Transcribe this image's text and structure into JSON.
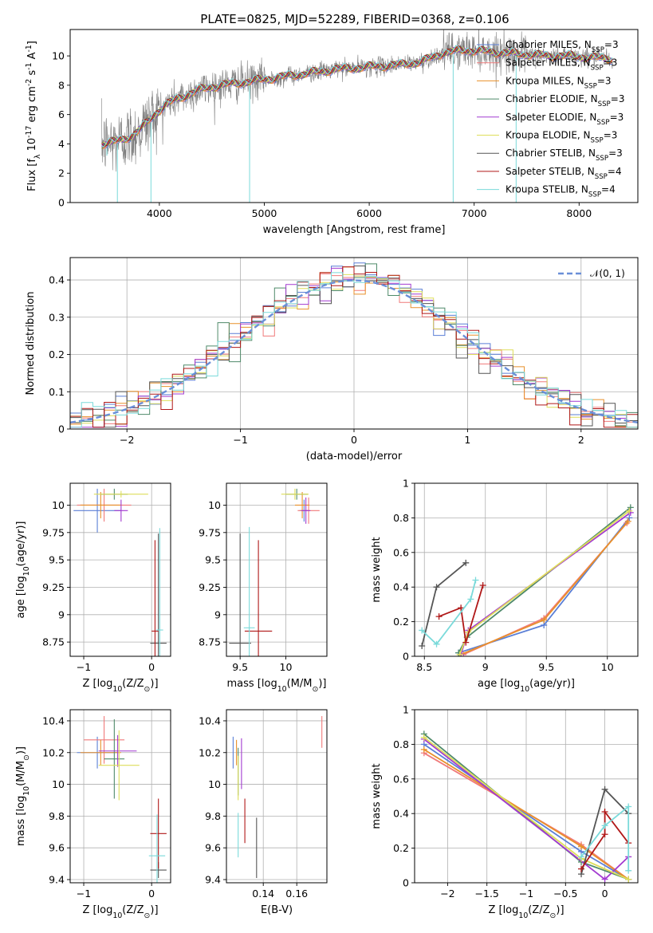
{
  "figure": {
    "title": "PLATE=0825, MJD=52289, FIBERID=0368, z=0.106"
  },
  "colors": {
    "Chabrier MILES": "#5b7fd6",
    "Salpeter MILES": "#f07a7a",
    "Kroupa MILES": "#e8902a",
    "Chabrier ELODIE": "#4f8a6a",
    "Salpeter ELODIE": "#a23ad0",
    "Kroupa ELODIE": "#dede5a",
    "Chabrier STELIB": "#555555",
    "Salpeter STELIB": "#b01818",
    "Kroupa STELIB": "#7adada",
    "data": "#7f7f7f",
    "normal": "#6a8fd8"
  },
  "chart_data": [
    {
      "id": "spectrum",
      "type": "line",
      "xlabel": "wavelength [Angstrom, rest frame]",
      "ylabel": "Flux [f$_\\lambda$ $10^{-17}$ erg cm$^{-2}$ s$^{-1}$ A$^{-1}$]",
      "xlim": [
        3150,
        8560
      ],
      "ylim": [
        0,
        11.8
      ],
      "xticks": [
        4000,
        5000,
        6000,
        7000,
        8000
      ],
      "yticks": [
        0,
        2,
        4,
        6,
        8,
        10
      ],
      "grid": false,
      "legend_position": "right",
      "legend": [
        {
          "label": "Chabrier MILES, N$_{SSP}$=3",
          "model": "Chabrier MILES"
        },
        {
          "label": "Salpeter MILES, N$_{SSP}$=3",
          "model": "Salpeter MILES"
        },
        {
          "label": "Kroupa MILES, N$_{SSP}$=3",
          "model": "Kroupa MILES"
        },
        {
          "label": "Chabrier ELODIE, N$_{SSP}$=3",
          "model": "Chabrier ELODIE"
        },
        {
          "label": "Salpeter ELODIE, N$_{SSP}$=3",
          "model": "Salpeter ELODIE"
        },
        {
          "label": "Kroupa ELODIE, N$_{SSP}$=3",
          "model": "Kroupa ELODIE"
        },
        {
          "label": "Chabrier STELIB, N$_{SSP}$=3",
          "model": "Chabrier STELIB"
        },
        {
          "label": "Salpeter STELIB, N$_{SSP}$=4",
          "model": "Salpeter STELIB"
        },
        {
          "label": "Kroupa STELIB, N$_{SSP}$=4",
          "model": "Kroupa STELIB"
        }
      ],
      "continuum": {
        "x": [
          3450,
          3550,
          3650,
          3750,
          3850,
          3950,
          4050,
          4150,
          4250,
          4350,
          4500,
          4700,
          4900,
          5100,
          5300,
          5500,
          5700,
          5900,
          6100,
          6300,
          6500,
          6700,
          6900,
          7100,
          7300,
          7500,
          7700,
          7900,
          8100,
          8300
        ],
        "y": [
          4.0,
          4.1,
          4.3,
          4.6,
          5.2,
          6.0,
          6.6,
          7.0,
          7.3,
          7.6,
          7.9,
          8.1,
          8.3,
          8.5,
          8.7,
          8.9,
          9.1,
          9.2,
          9.3,
          9.4,
          9.6,
          10.2,
          10.4,
          10.3,
          10.2,
          10.1,
          10.0,
          10.0,
          9.9,
          9.8
        ]
      },
      "spikes": [
        {
          "x": 3500,
          "y": 3.2
        },
        {
          "x": 3600,
          "y": 0.0
        },
        {
          "x": 3920,
          "y": 0.0
        },
        {
          "x": 4860,
          "y": 0.0
        },
        {
          "x": 6800,
          "y": 0.0
        },
        {
          "x": 7400,
          "y": 0.0
        }
      ]
    },
    {
      "id": "residuals",
      "type": "histogram",
      "xlabel": "(data-model)/error",
      "ylabel": "Normed distribution",
      "xlim": [
        -2.5,
        2.5
      ],
      "ylim": [
        0,
        0.46
      ],
      "xticks": [
        -2,
        -1,
        0,
        1,
        2
      ],
      "yticks": [
        0.0,
        0.1,
        0.2,
        0.3,
        0.4
      ],
      "grid": true,
      "legend_position": "top-right",
      "legend": [
        "$\\mathcal{N}(0,1)$"
      ],
      "bin_width": 0.1
    },
    {
      "id": "age_vs_Z",
      "type": "scatter",
      "xlabel": "Z [log$_{10}$($Z/Z_\\odot$)]",
      "ylabel": "age  [log$_{10}$($age/yr$)]",
      "xlim": [
        -1.2,
        0.28
      ],
      "ylim": [
        8.62,
        10.2
      ],
      "xticks": [
        -1,
        0
      ],
      "yticks": [
        8.75,
        9.0,
        9.25,
        9.5,
        9.75,
        10.0
      ],
      "grid": true,
      "points": [
        {
          "model": "Chabrier MILES",
          "x": -0.8,
          "y": 9.95,
          "xerr": 0.35,
          "yerr": 0.2
        },
        {
          "model": "Salpeter MILES",
          "x": -0.7,
          "y": 10.0,
          "xerr": 0.4,
          "yerr": 0.15
        },
        {
          "model": "Kroupa MILES",
          "x": -0.75,
          "y": 10.0,
          "xerr": 0.3,
          "yerr": 0.12
        },
        {
          "model": "Chabrier ELODIE",
          "x": -0.55,
          "y": 10.1,
          "xerr": 0.2,
          "yerr": 0.05
        },
        {
          "model": "Salpeter ELODIE",
          "x": -0.45,
          "y": 9.95,
          "xerr": 0.1,
          "yerr": 0.1
        },
        {
          "model": "Kroupa ELODIE",
          "x": -0.45,
          "y": 10.1,
          "xerr": 0.4,
          "yerr": 0.03
        },
        {
          "model": "Chabrier STELIB",
          "x": 0.1,
          "y": 8.74,
          "xerr": 0.12,
          "yerr": 1.0
        },
        {
          "model": "Salpeter STELIB",
          "x": 0.05,
          "y": 8.85,
          "xerr": 0.05,
          "yerr": 0.83
        },
        {
          "model": "Kroupa STELIB",
          "x": 0.12,
          "y": 8.86,
          "xerr": 0.05,
          "yerr": 0.93
        }
      ]
    },
    {
      "id": "age_vs_mass",
      "type": "scatter",
      "xlabel": "mass [log$_{10}$($M/M_\\odot$)]",
      "ylabel": "",
      "xlim": [
        9.35,
        10.45
      ],
      "ylim": [
        8.62,
        10.2
      ],
      "xticks": [
        9.5,
        10.0
      ],
      "yticks": [
        8.75,
        9.0,
        9.25,
        9.5,
        9.75,
        10.0
      ],
      "grid": true,
      "points": [
        {
          "model": "Chabrier MILES",
          "x": 10.2,
          "y": 9.95,
          "xerr": 0.05,
          "yerr": 0.1
        },
        {
          "model": "Salpeter MILES",
          "x": 10.25,
          "y": 9.95,
          "xerr": 0.12,
          "yerr": 0.12
        },
        {
          "model": "Kroupa MILES",
          "x": 10.18,
          "y": 10.0,
          "xerr": 0.08,
          "yerr": 0.12
        },
        {
          "model": "Chabrier ELODIE",
          "x": 10.12,
          "y": 10.1,
          "xerr": 0.12,
          "yerr": 0.05
        },
        {
          "model": "Salpeter ELODIE",
          "x": 10.22,
          "y": 9.95,
          "xerr": 0.05,
          "yerr": 0.12
        },
        {
          "model": "Kroupa ELODIE",
          "x": 10.1,
          "y": 10.1,
          "xerr": 0.15,
          "yerr": 0.05
        },
        {
          "model": "Chabrier STELIB",
          "x": 9.5,
          "y": 8.74,
          "xerr": 0.12,
          "yerr": 1.0
        },
        {
          "model": "Salpeter STELIB",
          "x": 9.7,
          "y": 8.85,
          "xerr": 0.15,
          "yerr": 0.83
        },
        {
          "model": "Kroupa STELIB",
          "x": 9.6,
          "y": 8.88,
          "xerr": 0.06,
          "yerr": 0.92
        }
      ]
    },
    {
      "id": "weight_vs_age",
      "type": "line",
      "xlabel": "age  [log$_{10}$($age/yr$)]",
      "ylabel": "mass weight",
      "xlim": [
        8.42,
        10.25
      ],
      "ylim": [
        0,
        1.0
      ],
      "xticks": [
        8.5,
        9.0,
        9.5,
        10.0
      ],
      "yticks": [
        0.0,
        0.2,
        0.4,
        0.6,
        0.8,
        1.0
      ],
      "grid": true,
      "series": [
        {
          "model": "Chabrier MILES",
          "x": [
            8.78,
            9.48,
            10.18
          ],
          "y": [
            0.02,
            0.18,
            0.8
          ]
        },
        {
          "model": "Salpeter MILES",
          "x": [
            8.82,
            9.48,
            10.16
          ],
          "y": [
            0.01,
            0.22,
            0.77
          ]
        },
        {
          "model": "Kroupa MILES",
          "x": [
            8.8,
            9.48,
            10.17
          ],
          "y": [
            0.01,
            0.21,
            0.78
          ]
        },
        {
          "model": "Chabrier ELODIE",
          "x": [
            8.78,
            8.85,
            10.19
          ],
          "y": [
            0.02,
            0.11,
            0.86
          ]
        },
        {
          "model": "Salpeter ELODIE",
          "x": [
            8.8,
            8.86,
            10.19
          ],
          "y": [
            0.01,
            0.15,
            0.83
          ]
        },
        {
          "model": "Kroupa ELODIE",
          "x": [
            8.79,
            8.86,
            10.18
          ],
          "y": [
            0.01,
            0.14,
            0.84
          ]
        },
        {
          "model": "Chabrier STELIB",
          "x": [
            8.48,
            8.6,
            8.84
          ],
          "y": [
            0.06,
            0.4,
            0.54
          ]
        },
        {
          "model": "Salpeter STELIB",
          "x": [
            8.62,
            8.8,
            8.84,
            8.98
          ],
          "y": [
            0.23,
            0.28,
            0.08,
            0.41
          ]
        },
        {
          "model": "Kroupa STELIB",
          "x": [
            8.48,
            8.6,
            8.88,
            8.92
          ],
          "y": [
            0.15,
            0.07,
            0.33,
            0.44
          ]
        }
      ]
    },
    {
      "id": "mass_vs_Z",
      "type": "scatter",
      "xlabel": "Z [log$_{10}$($Z/Z_\\odot$)]",
      "ylabel": "mass [log$_{10}$($M/M_\\odot$)]",
      "xlim": [
        -1.2,
        0.28
      ],
      "ylim": [
        9.38,
        10.47
      ],
      "xticks": [
        -1,
        0
      ],
      "yticks": [
        9.4,
        9.6,
        9.8,
        10.0,
        10.2,
        10.4
      ],
      "grid": true,
      "points": [
        {
          "model": "Chabrier MILES",
          "x": -0.8,
          "y": 10.2,
          "xerr": 0.3,
          "yerr": 0.1
        },
        {
          "model": "Salpeter MILES",
          "x": -0.7,
          "y": 10.28,
          "xerr": 0.3,
          "yerr": 0.15
        },
        {
          "model": "Kroupa MILES",
          "x": -0.75,
          "y": 10.2,
          "xerr": 0.3,
          "yerr": 0.08
        },
        {
          "model": "Chabrier ELODIE",
          "x": -0.55,
          "y": 10.16,
          "xerr": 0.15,
          "yerr": 0.25
        },
        {
          "model": "Salpeter ELODIE",
          "x": -0.5,
          "y": 10.21,
          "xerr": 0.28,
          "yerr": 0.1
        },
        {
          "model": "Kroupa ELODIE",
          "x": -0.48,
          "y": 10.12,
          "xerr": 0.3,
          "yerr": 0.22
        },
        {
          "model": "Chabrier STELIB",
          "x": 0.1,
          "y": 9.46,
          "xerr": 0.12,
          "yerr": 0.05
        },
        {
          "model": "Salpeter STELIB",
          "x": 0.1,
          "y": 9.69,
          "xerr": 0.12,
          "yerr": 0.22
        },
        {
          "model": "Kroupa STELIB",
          "x": 0.08,
          "y": 9.55,
          "xerr": 0.12,
          "yerr": 0.26
        }
      ]
    },
    {
      "id": "mass_vs_ebv",
      "type": "scatter",
      "xlabel": "E(B-V)",
      "ylabel": "",
      "xlim": [
        0.118,
        0.178
      ],
      "ylim": [
        9.38,
        10.47
      ],
      "xticks": [
        0.14,
        0.16
      ],
      "yticks": [
        9.4,
        9.6,
        9.8,
        10.0,
        10.2,
        10.4
      ],
      "grid": true,
      "points": [
        {
          "model": "Chabrier MILES",
          "x": 0.122,
          "y": 10.2,
          "xerr": 0,
          "yerr": 0.1
        },
        {
          "model": "Salpeter MILES",
          "x": 0.175,
          "y": 10.33,
          "xerr": 0,
          "yerr": 0.1
        },
        {
          "model": "Kroupa MILES",
          "x": 0.124,
          "y": 10.2,
          "xerr": 0,
          "yerr": 0.08
        },
        {
          "model": "Chabrier ELODIE",
          "x": 0.125,
          "y": 10.08,
          "xerr": 0,
          "yerr": 0.15
        },
        {
          "model": "Salpeter ELODIE",
          "x": 0.127,
          "y": 10.13,
          "xerr": 0,
          "yerr": 0.16
        },
        {
          "model": "Kroupa ELODIE",
          "x": 0.125,
          "y": 10.04,
          "xerr": 0,
          "yerr": 0.14
        },
        {
          "model": "Chabrier STELIB",
          "x": 0.136,
          "y": 9.6,
          "xerr": 0,
          "yerr": 0.19
        },
        {
          "model": "Salpeter STELIB",
          "x": 0.129,
          "y": 9.77,
          "xerr": 0,
          "yerr": 0.14
        },
        {
          "model": "Kroupa STELIB",
          "x": 0.125,
          "y": 9.68,
          "xerr": 0,
          "yerr": 0.14
        }
      ]
    },
    {
      "id": "weight_vs_Z",
      "type": "line",
      "xlabel": "Z [log$_{10}$($Z/Z_\\odot$)]",
      "ylabel": "mass weight",
      "xlim": [
        -2.42,
        0.42
      ],
      "ylim": [
        0,
        1.0
      ],
      "xticks": [
        -2.0,
        -1.5,
        -1.0,
        -0.5,
        0.0
      ],
      "yticks": [
        0.0,
        0.2,
        0.4,
        0.6,
        0.8,
        1.0
      ],
      "grid": true,
      "series": [
        {
          "model": "Chabrier MILES",
          "x": [
            -2.3,
            -0.3,
            0.3
          ],
          "y": [
            0.8,
            0.18,
            0.02
          ]
        },
        {
          "model": "Salpeter MILES",
          "x": [
            -2.3,
            -0.3,
            0.3
          ],
          "y": [
            0.75,
            0.22,
            0.02
          ]
        },
        {
          "model": "Kroupa MILES",
          "x": [
            -2.3,
            -0.3,
            0.3
          ],
          "y": [
            0.77,
            0.21,
            0.02
          ]
        },
        {
          "model": "Chabrier ELODIE",
          "x": [
            -2.3,
            -0.3,
            0.3
          ],
          "y": [
            0.86,
            0.12,
            0.02
          ]
        },
        {
          "model": "Salpeter ELODIE",
          "x": [
            -2.3,
            0.0,
            0.3
          ],
          "y": [
            0.83,
            0.02,
            0.15
          ]
        },
        {
          "model": "Kroupa ELODIE",
          "x": [
            -2.3,
            -0.3,
            0.3
          ],
          "y": [
            0.84,
            0.14,
            0.02
          ]
        },
        {
          "model": "Chabrier STELIB",
          "x": [
            -0.3,
            0.0,
            0.3
          ],
          "y": [
            0.05,
            0.54,
            0.4
          ]
        },
        {
          "model": "Salpeter STELIB",
          "x": [
            -0.3,
            0.0,
            0.0,
            0.3
          ],
          "y": [
            0.08,
            0.28,
            0.41,
            0.23
          ]
        },
        {
          "model": "Kroupa STELIB",
          "x": [
            -0.3,
            0.0,
            0.3,
            0.3
          ],
          "y": [
            0.15,
            0.33,
            0.44,
            0.07
          ]
        }
      ]
    }
  ]
}
